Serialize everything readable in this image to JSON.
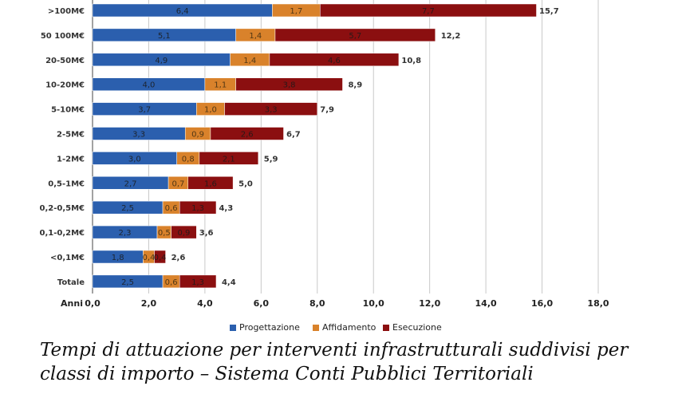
{
  "chart_data": {
    "type": "bar",
    "orientation": "horizontal",
    "stacked": true,
    "categories": [
      ">100M€",
      "50 100M€",
      "20-50M€",
      "10-20M€",
      "5-10M€",
      "2-5M€",
      "1-2M€",
      "0,5-1M€",
      "0,2-0,5M€",
      "0,1-0,2M€",
      "<0,1M€",
      "Totale"
    ],
    "series": [
      {
        "name": "Progettazione",
        "color": "#2b5fae",
        "values": [
          6.4,
          5.1,
          4.9,
          4.0,
          3.7,
          3.3,
          3.0,
          2.7,
          2.5,
          2.3,
          1.8,
          2.5
        ],
        "labels": [
          "6,4",
          "5,1",
          "4,9",
          "4,0",
          "3,7",
          "3,3",
          "3,0",
          "2,7",
          "2,5",
          "2,3",
          "1,8",
          "2,5"
        ]
      },
      {
        "name": "Affidamento",
        "color": "#d9822b",
        "values": [
          1.7,
          1.4,
          1.4,
          1.1,
          1.0,
          0.9,
          0.8,
          0.7,
          0.6,
          0.5,
          0.4,
          0.6
        ],
        "labels": [
          "1,7",
          "1,4",
          "1,4",
          "1,1",
          "1,0",
          "0,9",
          "0,8",
          "0,7",
          "0,6",
          "0,5",
          "0,4",
          "0,6"
        ]
      },
      {
        "name": "Esecuzione",
        "color": "#8b0f10",
        "values": [
          7.7,
          5.7,
          4.6,
          3.8,
          3.3,
          2.6,
          2.1,
          1.6,
          1.3,
          0.9,
          0.4,
          1.3
        ],
        "labels": [
          "7,7",
          "5,7",
          "4,6",
          "3,8",
          "3,3",
          "2,6",
          "2,1",
          "1,6",
          "1,3",
          "0,9",
          "0,4",
          "1,3"
        ]
      }
    ],
    "totals": [
      15.7,
      12.2,
      10.8,
      8.9,
      7.9,
      6.7,
      5.9,
      5.0,
      4.3,
      3.6,
      2.6,
      4.4
    ],
    "total_labels": [
      "15,7",
      "12,2",
      "10,8",
      "8,9",
      "7,9",
      "6,7",
      "5,9",
      "5,0",
      "4,3",
      "3,6",
      "2,6",
      "4,4"
    ],
    "xlabel": "Anni",
    "xlim": [
      0,
      18
    ],
    "xticks": [
      0,
      2,
      4,
      6,
      8,
      10,
      12,
      14,
      16,
      18
    ],
    "xtick_labels": [
      "0,0",
      "2,0",
      "4,0",
      "6,0",
      "8,0",
      "10,0",
      "12,0",
      "14,0",
      "16,0",
      "18,0"
    ],
    "grid": "vertical",
    "legend": "bottom"
  },
  "caption": {
    "line1": "Tempi di attuazione per interventi infrastrutturali suddivisi per",
    "line2": "classi di importo – Sistema Conti Pubblici Territoriali"
  }
}
